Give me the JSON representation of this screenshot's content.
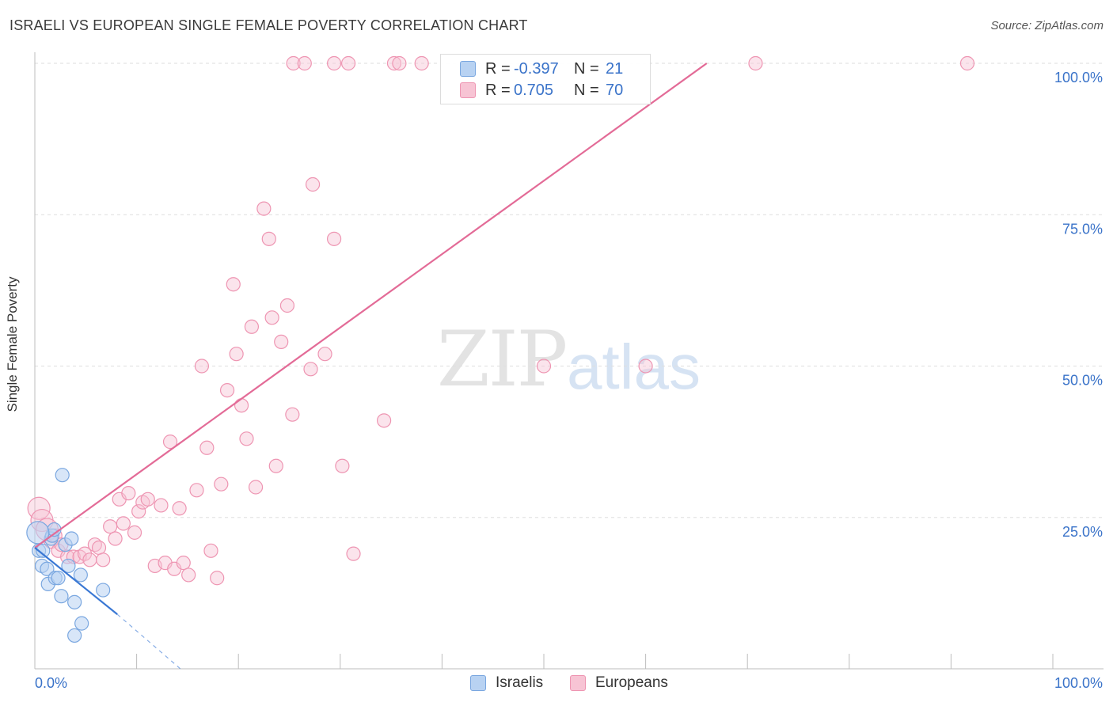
{
  "title": "ISRAELI VS EUROPEAN SINGLE FEMALE POVERTY CORRELATION CHART",
  "source": "Source: ZipAtlas.com",
  "watermark": {
    "zip": "ZIP",
    "atlas": "atlas"
  },
  "legend": {
    "rows": [
      {
        "r_label": "R =",
        "r_value": "-0.397",
        "n_label": "N =",
        "n_value": "21",
        "fill": "#b8d2f2",
        "stroke": "#7aa7e0"
      },
      {
        "r_label": "R =",
        "r_value": "0.705",
        "n_label": "N =",
        "n_value": "70",
        "fill": "#f7c4d4",
        "stroke": "#ee95b2"
      }
    ]
  },
  "bottom_legend": [
    {
      "label": "Israelis",
      "fill": "#b8d2f2",
      "stroke": "#7aa7e0"
    },
    {
      "label": "Europeans",
      "fill": "#f7c4d4",
      "stroke": "#ee95b2"
    }
  ],
  "chart_data": {
    "type": "scatter",
    "title": "ISRAELI VS EUROPEAN SINGLE FEMALE POVERTY CORRELATION CHART",
    "xlabel": "",
    "ylabel": "Single Female Poverty",
    "xlim": [
      0,
      100
    ],
    "ylim": [
      0,
      100
    ],
    "x_tick_labels": [
      "0.0%",
      "100.0%"
    ],
    "y_tick_labels": [
      "25.0%",
      "50.0%",
      "75.0%",
      "100.0%"
    ],
    "y_ticks": [
      25,
      50,
      75,
      100
    ],
    "grid": "horizontal dashed",
    "legend_position": "top-center",
    "colors": {
      "israelis": "#3a78d4",
      "europeans": "#e36b97",
      "tick_text": "#3a73c9"
    },
    "series": [
      {
        "name": "Israelis",
        "points": [
          [
            0.4,
            19.5
          ],
          [
            0.7,
            17.0
          ],
          [
            1.2,
            16.5
          ],
          [
            1.3,
            14.0
          ],
          [
            1.6,
            21.5
          ],
          [
            1.7,
            22.0
          ],
          [
            1.9,
            23.0
          ],
          [
            2.0,
            15.0
          ],
          [
            2.3,
            15.0
          ],
          [
            2.6,
            12.0
          ],
          [
            2.7,
            32.0
          ],
          [
            3.0,
            20.5
          ],
          [
            3.3,
            17.0
          ],
          [
            3.6,
            21.5
          ],
          [
            3.9,
            11.0
          ],
          [
            3.9,
            5.5
          ],
          [
            4.5,
            15.5
          ],
          [
            4.6,
            7.5
          ],
          [
            6.7,
            13.0
          ],
          [
            0.3,
            22.5
          ],
          [
            0.8,
            19.5
          ]
        ],
        "trend": {
          "x0": 0,
          "y0": 20.0,
          "x1": 8.1,
          "y1": 9.0,
          "dash_to_x": 14.3,
          "dash_to_y": 0
        }
      },
      {
        "name": "Europeans",
        "points": [
          [
            0.4,
            26.5
          ],
          [
            0.7,
            24.5
          ],
          [
            1.2,
            23.0
          ],
          [
            1.6,
            21.0
          ],
          [
            2.0,
            22.0
          ],
          [
            2.3,
            19.5
          ],
          [
            2.6,
            20.5
          ],
          [
            3.2,
            18.5
          ],
          [
            3.8,
            18.5
          ],
          [
            4.4,
            18.5
          ],
          [
            4.9,
            19.0
          ],
          [
            5.4,
            18.0
          ],
          [
            5.9,
            20.5
          ],
          [
            6.3,
            20.0
          ],
          [
            6.7,
            18.0
          ],
          [
            7.4,
            23.5
          ],
          [
            7.9,
            21.5
          ],
          [
            8.3,
            28.0
          ],
          [
            8.7,
            24.0
          ],
          [
            9.2,
            29.0
          ],
          [
            9.8,
            22.5
          ],
          [
            10.2,
            26.0
          ],
          [
            10.6,
            27.5
          ],
          [
            11.1,
            28.0
          ],
          [
            11.8,
            17.0
          ],
          [
            12.4,
            27.0
          ],
          [
            12.8,
            17.5
          ],
          [
            13.3,
            37.5
          ],
          [
            13.7,
            16.5
          ],
          [
            14.2,
            26.5
          ],
          [
            14.6,
            17.5
          ],
          [
            15.1,
            15.5
          ],
          [
            15.9,
            29.5
          ],
          [
            16.4,
            50.0
          ],
          [
            16.9,
            36.5
          ],
          [
            17.3,
            19.5
          ],
          [
            17.9,
            15.0
          ],
          [
            18.3,
            30.5
          ],
          [
            18.9,
            46.0
          ],
          [
            19.5,
            63.5
          ],
          [
            19.8,
            52.0
          ],
          [
            20.3,
            43.5
          ],
          [
            20.8,
            38.0
          ],
          [
            21.3,
            56.5
          ],
          [
            21.7,
            30.0
          ],
          [
            22.5,
            76.0
          ],
          [
            23.0,
            71.0
          ],
          [
            23.3,
            58.0
          ],
          [
            23.7,
            33.5
          ],
          [
            24.2,
            54.0
          ],
          [
            24.8,
            60.0
          ],
          [
            25.3,
            42.0
          ],
          [
            27.3,
            80.0
          ],
          [
            27.1,
            49.5
          ],
          [
            28.5,
            52.0
          ],
          [
            29.4,
            71.0
          ],
          [
            30.2,
            33.5
          ],
          [
            31.3,
            19.0
          ],
          [
            34.3,
            41.0
          ],
          [
            50.0,
            50.0
          ],
          [
            60.0,
            50.0
          ],
          [
            25.4,
            100.0
          ],
          [
            26.5,
            100.0
          ],
          [
            29.4,
            100.0
          ],
          [
            30.8,
            100.0
          ],
          [
            35.3,
            100.0
          ],
          [
            35.8,
            100.0
          ],
          [
            38.0,
            100.0
          ],
          [
            70.8,
            100.0
          ],
          [
            91.6,
            100.0
          ]
        ],
        "trend": {
          "x0": 0,
          "y0": 20.0,
          "x1": 66.0,
          "y1": 100.0
        }
      }
    ]
  }
}
